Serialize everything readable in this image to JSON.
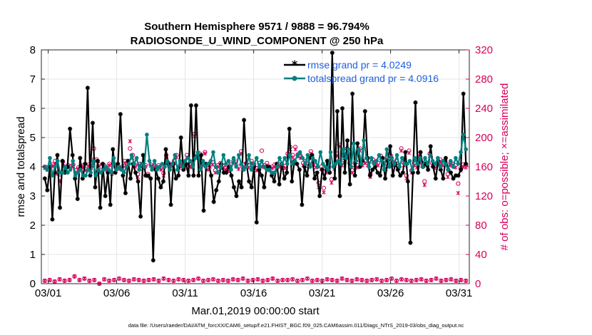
{
  "chart_data": {
    "type": "line",
    "title": [
      "Southern Hemisphere 9571 / 9888 = 96.794%",
      "RADIOSONDE_U_WIND_COMPONENT @ 250 hPa"
    ],
    "xlabel": "Mar.01,2019 00:00:00 start",
    "ylabel_left": "rmse and totalspread",
    "ylabel_right": "# of obs: o=possible; ×=assimilated",
    "footer": "data file: /Users/raeder/DAI/ATM_forcXX/CAM6_setup/f.e21.FHIST_BGC.f09_025.CAM6assim.011/Diags_NTrS_2019-03/obs_diag_output.nc",
    "xlim": [
      0.5,
      31.75
    ],
    "ylim_left": [
      0,
      8
    ],
    "ylim_right": [
      0,
      320
    ],
    "x_ticks": [
      {
        "x": 1,
        "label": "03/01"
      },
      {
        "x": 6,
        "label": "03/06"
      },
      {
        "x": 11,
        "label": "03/11"
      },
      {
        "x": 16,
        "label": "03/16"
      },
      {
        "x": 21,
        "label": "03/21"
      },
      {
        "x": 26,
        "label": "03/26"
      },
      {
        "x": 31,
        "label": "03/31"
      }
    ],
    "y_ticks_left": [
      "0",
      "1",
      "2",
      "3",
      "4",
      "5",
      "6",
      "7",
      "8"
    ],
    "y_ticks_right": [
      "0",
      "40",
      "80",
      "120",
      "160",
      "200",
      "240",
      "280",
      "320"
    ],
    "colors": {
      "rmse": "#000000",
      "spread": "#008080",
      "obs": "#d6005a",
      "legend_text": "#1f5fe0"
    },
    "series": [
      {
        "name": "rmse grand pr = 4.0249",
        "axis": "left",
        "values": [
          3.6,
          3.2,
          4.0,
          2.2,
          3.8,
          4.4,
          2.6,
          4.2,
          3.8,
          4.0,
          5.3,
          4.4,
          3.6,
          2.9,
          4.3,
          3.6,
          4.1,
          6.7,
          3.7,
          5.5,
          3.3,
          4.2,
          2.6,
          4.1,
          3.0,
          3.8,
          2.7,
          4.6,
          3.8,
          4.1,
          5.8,
          3.7,
          3.1,
          4.2,
          3.6,
          4.1,
          3.8,
          3.5,
          2.3,
          4.4,
          3.7,
          3.7,
          3.6,
          0.8,
          3.9,
          3.6,
          3.3,
          3.5,
          4.6,
          4.1,
          2.7,
          4.1,
          3.6,
          3.7,
          5.0,
          3.9,
          4.1,
          3.7,
          6.1,
          3.7,
          6.1,
          3.7,
          4.4,
          2.5,
          4.1,
          4.1,
          3.7,
          2.8,
          3.2,
          3.5,
          4.1,
          3.8,
          3.8,
          4.0,
          3.7,
          3.3,
          3.0,
          3.5,
          3.3,
          5.6,
          4.1,
          3.5,
          3.3,
          4.0,
          2.1,
          3.9,
          3.7,
          3.3,
          4.0,
          4.0,
          3.7,
          3.5,
          4.1,
          3.4,
          4.1,
          3.6,
          3.8,
          5.3,
          3.5,
          4.2,
          4.1,
          3.9,
          2.7,
          4.0,
          3.7,
          4.3,
          4.4,
          3.6,
          3.8,
          3.0,
          3.9,
          3.6,
          4.2,
          3.8,
          7.9,
          3.6,
          5.9,
          3.0,
          6.0,
          3.8,
          4.9,
          3.4,
          6.5,
          3.7,
          4.8,
          4.0,
          4.2,
          5.9,
          4.3,
          3.7,
          3.9,
          4.0,
          3.8,
          3.7,
          4.3,
          3.6,
          4.2,
          4.7,
          3.7,
          4.1,
          3.9,
          3.7,
          3.8,
          4.5,
          3.5,
          1.4,
          3.8,
          6.2,
          3.8,
          4.5,
          4.0,
          4.1,
          3.9,
          4.7,
          4.0,
          3.6,
          4.2,
          3.9,
          3.6,
          4.3,
          3.9,
          3.8,
          3.6,
          3.7,
          3.7,
          3.9,
          6.5,
          4.1
        ]
      },
      {
        "name": "totalspread grand pr = 4.0916",
        "axis": "left",
        "values": [
          4.0,
          3.9,
          4.3,
          3.7,
          4.0,
          4.2,
          3.8,
          3.8,
          4.0,
          3.8,
          3.9,
          4.2,
          3.7,
          3.8,
          3.9,
          3.7,
          3.7,
          3.9,
          3.8,
          4.2,
          3.7,
          3.9,
          3.8,
          3.9,
          4.0,
          3.9,
          3.8,
          4.3,
          3.9,
          4.0,
          3.9,
          3.8,
          4.0,
          4.1,
          4.4,
          4.1,
          4.3,
          3.9,
          4.1,
          4.0,
          5.1,
          4.2,
          3.9,
          4.2,
          3.9,
          4.0,
          4.1,
          4.0,
          4.2,
          3.9,
          4.1,
          4.4,
          3.9,
          4.2,
          4.0,
          4.2,
          4.3,
          4.2,
          4.0,
          4.3,
          4.5,
          3.9,
          4.2,
          4.0,
          4.1,
          4.2,
          4.5,
          4.0,
          3.8,
          4.0,
          4.4,
          4.1,
          4.2,
          3.9,
          4.3,
          4.0,
          4.4,
          4.1,
          3.9,
          4.0,
          4.4,
          3.9,
          4.1,
          4.3,
          4.0,
          4.2,
          4.0,
          3.9,
          3.9,
          3.8,
          3.8,
          4.0,
          4.3,
          4.1,
          4.3,
          4.1,
          4.4,
          4.1,
          4.2,
          4.4,
          4.5,
          4.3,
          4.1,
          4.4,
          4.0,
          4.3,
          4.2,
          4.0,
          4.5,
          4.1,
          4.0,
          3.9,
          4.5,
          4.0,
          4.1,
          4.2,
          4.1,
          4.6,
          4.3,
          4.6,
          4.0,
          4.8,
          4.2,
          4.6,
          4.1,
          4.9,
          4.3,
          4.0,
          4.3,
          4.1,
          4.2,
          4.4,
          4.2,
          3.9,
          4.6,
          4.0,
          4.3,
          4.1,
          4.4,
          4.0,
          4.3,
          4.1,
          4.1,
          4.2,
          3.9,
          4.3,
          4.1,
          4.3,
          4.0,
          4.3,
          4.1,
          4.4,
          4.2,
          4.1,
          4.3,
          4.0,
          4.2,
          4.1,
          3.9,
          4.2,
          4.0,
          4.3,
          4.1,
          4.5,
          5.1,
          4.6
        ]
      },
      {
        "name": "obs possible (o)",
        "axis": "right",
        "values": [
          160,
          159,
          162,
          163,
          168,
          152,
          145,
          167,
          156,
          162,
          161,
          163,
          155,
          159,
          158,
          162,
          157,
          163,
          160,
          185,
          170,
          163,
          155,
          162,
          158,
          164,
          152,
          163,
          162,
          159,
          160,
          168,
          163,
          185,
          176,
          162,
          150,
          164,
          160,
          162,
          150,
          163,
          160,
          159,
          162,
          158,
          151,
          176,
          165,
          163,
          168,
          176,
          160,
          165,
          161,
          176,
          163,
          161,
          205,
          175,
          178,
          164,
          180,
          158,
          163,
          166,
          155,
          162,
          165,
          161,
          158,
          157,
          163,
          168,
          167,
          160,
          181,
          163,
          165,
          162,
          168,
          163,
          158,
          165,
          182,
          162,
          165,
          158,
          160,
          163,
          162,
          163,
          160,
          161,
          178,
          187,
          176,
          187,
          177,
          175,
          165,
          168,
          164,
          181,
          167,
          162,
          138,
          160,
          131,
          155,
          165,
          143,
          160,
          178,
          190,
          165,
          175,
          185,
          165,
          155,
          165,
          162,
          185,
          165,
          168,
          165,
          150,
          170,
          165,
          165,
          175,
          165,
          160,
          170,
          175,
          165,
          168,
          161,
          185,
          165,
          148,
          182,
          155,
          165,
          162,
          178,
          165,
          140,
          165,
          178,
          165,
          161,
          165,
          170,
          165,
          168,
          150,
          165,
          164,
          162,
          137,
          158,
          163,
          162
        ]
      },
      {
        "name": "obs assimilated (×)",
        "axis": "right",
        "values": [
          158,
          156,
          160,
          161,
          164,
          150,
          140,
          165,
          154,
          160,
          158,
          160,
          152,
          157,
          156,
          160,
          155,
          161,
          158,
          170,
          168,
          161,
          153,
          160,
          156,
          162,
          150,
          160,
          160,
          157,
          158,
          165,
          161,
          195,
          172,
          160,
          146,
          162,
          157,
          160,
          147,
          161,
          158,
          157,
          160,
          156,
          148,
          172,
          162,
          161,
          165,
          173,
          158,
          162,
          159,
          173,
          160,
          159,
          202,
          172,
          175,
          162,
          178,
          156,
          160,
          163,
          152,
          160,
          162,
          159,
          156,
          154,
          160,
          165,
          164,
          157,
          178,
          160,
          162,
          159,
          165,
          160,
          155,
          162,
          160,
          159,
          162,
          155,
          158,
          160,
          159,
          160,
          158,
          158,
          175,
          184,
          173,
          184,
          174,
          172,
          162,
          165,
          161,
          178,
          164,
          159,
          132,
          157,
          125,
          152,
          162,
          138,
          157,
          175,
          188,
          162,
          172,
          182,
          162,
          152,
          162,
          159,
          182,
          162,
          165,
          162,
          146,
          167,
          162,
          162,
          172,
          162,
          157,
          167,
          172,
          162,
          165,
          158,
          182,
          162,
          144,
          179,
          152,
          162,
          159,
          175,
          162,
          135,
          162,
          175,
          162,
          158,
          162,
          167,
          162,
          165,
          146,
          162,
          161,
          159,
          124,
          155,
          160,
          159
        ]
      },
      {
        "name": "obs bottom row possible (o)",
        "axis": "right",
        "values": [
          4,
          5,
          3,
          6,
          4,
          5,
          10,
          5,
          7,
          4,
          5,
          0,
          6,
          4,
          5,
          7,
          5,
          4,
          6,
          5,
          4,
          5,
          6,
          4,
          7,
          5,
          4,
          6,
          5,
          4,
          5,
          7,
          4,
          5,
          6,
          4,
          5,
          4,
          6,
          5,
          7,
          4,
          5,
          6,
          4,
          5,
          7,
          4,
          5,
          5,
          6,
          4,
          5,
          7,
          4,
          5,
          4,
          6,
          5,
          4,
          7,
          5,
          4,
          6,
          5,
          4,
          5,
          6,
          4,
          5,
          7,
          4,
          6,
          5,
          4,
          5,
          6,
          4,
          5,
          7,
          4,
          5,
          6,
          4,
          5,
          4
        ]
      },
      {
        "name": "obs bottom row assimilated (×)",
        "axis": "right",
        "values": [
          4,
          5,
          3,
          6,
          4,
          5,
          10,
          5,
          7,
          4,
          5,
          0,
          6,
          4,
          5,
          7,
          5,
          4,
          6,
          5,
          4,
          5,
          6,
          4,
          7,
          5,
          4,
          6,
          5,
          4,
          5,
          7,
          4,
          5,
          6,
          4,
          5,
          4,
          6,
          5,
          7,
          4,
          5,
          6,
          4,
          5,
          7,
          4,
          5,
          5,
          6,
          4,
          5,
          7,
          4,
          5,
          4,
          6,
          5,
          4,
          7,
          5,
          4,
          6,
          5,
          4,
          5,
          6,
          4,
          5,
          7,
          4,
          6,
          5,
          4,
          5,
          6,
          4,
          5,
          7,
          4,
          5,
          6,
          4,
          5,
          4
        ]
      }
    ],
    "legend": [
      "rmse grand pr = 4.0249",
      "totalspread grand pr = 4.0916"
    ],
    "legend_position": "top-right"
  }
}
